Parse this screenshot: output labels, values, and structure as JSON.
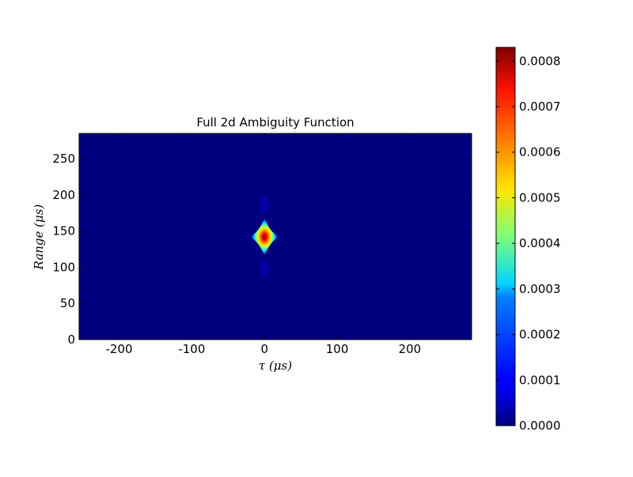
{
  "chart_data": {
    "type": "heatmap",
    "title": "Full 2d Ambiguity Function",
    "xlabel": "τ (μs)",
    "ylabel": "Range (μs)",
    "xlim": [
      -255,
      285
    ],
    "ylim": [
      0,
      285
    ],
    "xticks": [
      -200,
      -100,
      0,
      100,
      200
    ],
    "xtick_labels": [
      "-200",
      "-100",
      "0",
      "100",
      "200"
    ],
    "yticks": [
      0,
      50,
      100,
      150,
      200,
      250
    ],
    "ytick_labels": [
      "0",
      "50",
      "100",
      "150",
      "200",
      "250"
    ],
    "colormap": "jet",
    "background_value": 0.0,
    "peak": {
      "x": 0,
      "y": 142,
      "value": 0.00083,
      "shape": "diamond",
      "half_width_x": 18,
      "half_height_y": 25
    },
    "colorbar": {
      "min": 0.0,
      "max": 0.00083,
      "ticks": [
        0.0,
        0.0001,
        0.0002,
        0.0003,
        0.0004,
        0.0005,
        0.0006,
        0.0007,
        0.0008
      ],
      "tick_labels": [
        "0.0000",
        "0.0001",
        "0.0002",
        "0.0003",
        "0.0004",
        "0.0005",
        "0.0006",
        "0.0007",
        "0.0008"
      ]
    },
    "grid": false
  }
}
